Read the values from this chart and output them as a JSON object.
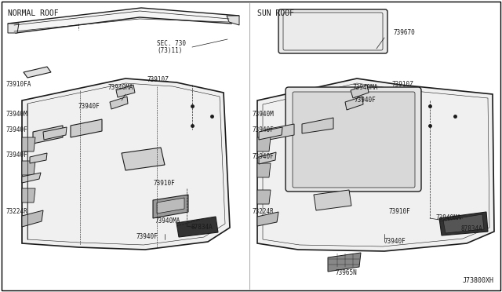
{
  "background_color": "#ffffff",
  "border_color": "#000000",
  "fig_width": 6.4,
  "fig_height": 3.72,
  "dpi": 100,
  "left_label": "NORMAL ROOF",
  "right_label": "SUN ROOF",
  "diagram_code": "J73800XH",
  "text_color": "#1a1a1a",
  "line_color": "#1a1a1a",
  "part_fontsize": 5.5,
  "label_fontsize": 7.0
}
